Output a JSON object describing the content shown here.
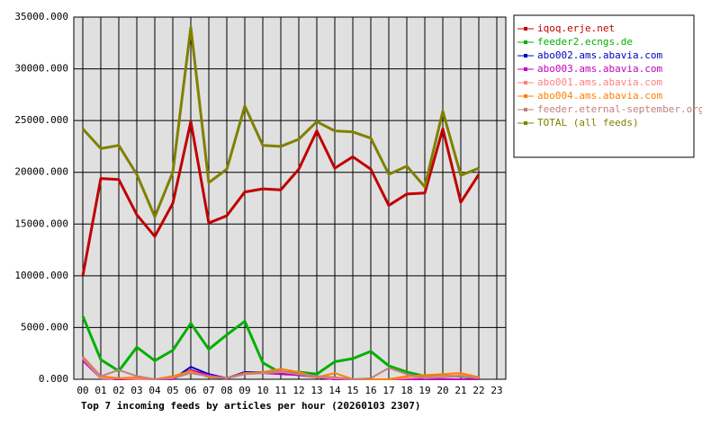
{
  "chart_data": {
    "type": "line",
    "title": "Top 7 incoming feeds by articles per hour (20260103 2307)",
    "categories": [
      "00",
      "01",
      "02",
      "03",
      "04",
      "05",
      "06",
      "07",
      "08",
      "09",
      "10",
      "11",
      "12",
      "13",
      "14",
      "15",
      "16",
      "17",
      "18",
      "19",
      "20",
      "21",
      "22",
      "23"
    ],
    "ylim": [
      0,
      35000
    ],
    "yticks": [
      {
        "value": 0,
        "label": "0.000"
      },
      {
        "value": 5000,
        "label": "5000.000"
      },
      {
        "value": 10000,
        "label": "10000.000"
      },
      {
        "value": 15000,
        "label": "15000.000"
      },
      {
        "value": 20000,
        "label": "20000.000"
      },
      {
        "value": 25000,
        "label": "25000.000"
      },
      {
        "value": 30000,
        "label": "30000.000"
      },
      {
        "value": 35000,
        "label": "35000.000"
      }
    ],
    "grid": true,
    "legend": "right",
    "series": [
      {
        "name": "iqoq.erje.net",
        "color": "#c00000",
        "values": [
          10000,
          19400,
          19300,
          15900,
          13800,
          17000,
          24900,
          15100,
          15800,
          18100,
          18400,
          18300,
          20300,
          24000,
          20400,
          21500,
          20300,
          16800,
          17900,
          18000,
          24200,
          17100,
          19800,
          null
        ]
      },
      {
        "name": "feeder2.ecngs.de",
        "color": "#00b000",
        "values": [
          6100,
          1900,
          800,
          3100,
          1800,
          2800,
          5400,
          2900,
          4300,
          5600,
          1600,
          600,
          700,
          500,
          1700,
          2000,
          2700,
          1300,
          700,
          300,
          300,
          300,
          100,
          null
        ]
      },
      {
        "name": "abo002.ams.abavia.com",
        "color": "#0000c0",
        "values": [
          1900,
          100,
          0,
          0,
          0,
          0,
          1200,
          500,
          100,
          700,
          700,
          600,
          500,
          200,
          0,
          0,
          0,
          0,
          0,
          0,
          0,
          0,
          0,
          null
        ]
      },
      {
        "name": "abo003.ams.abavia.com",
        "color": "#c000c0",
        "values": [
          1800,
          100,
          0,
          0,
          0,
          0,
          900,
          400,
          100,
          600,
          600,
          500,
          400,
          200,
          0,
          0,
          0,
          0,
          0,
          0,
          0,
          0,
          0,
          null
        ]
      },
      {
        "name": "abo001.ams.abavia.com",
        "color": "#ff8080",
        "values": [
          2000,
          100,
          100,
          0,
          0,
          100,
          700,
          300,
          100,
          500,
          600,
          700,
          500,
          200,
          100,
          0,
          0,
          0,
          100,
          200,
          300,
          400,
          100,
          null
        ]
      },
      {
        "name": "abo004.ams.abavia.com",
        "color": "#ff8000",
        "values": [
          2200,
          300,
          100,
          200,
          0,
          300,
          800,
          200,
          100,
          600,
          700,
          1000,
          700,
          200,
          600,
          0,
          0,
          0,
          300,
          400,
          500,
          600,
          200,
          null
        ]
      },
      {
        "name": "feeder.eternal-september.org",
        "color": "#c08080",
        "values": [
          2100,
          300,
          900,
          300,
          0,
          100,
          600,
          300,
          100,
          500,
          600,
          800,
          500,
          300,
          200,
          0,
          100,
          1100,
          500,
          100,
          200,
          300,
          100,
          null
        ]
      },
      {
        "name": "TOTAL (all feeds)",
        "color": "#808000",
        "values": [
          24200,
          22300,
          22600,
          19800,
          15700,
          20000,
          34000,
          19000,
          20300,
          26400,
          22600,
          22500,
          23200,
          24900,
          24000,
          23900,
          23300,
          19800,
          20600,
          18600,
          25900,
          19700,
          20400,
          null
        ]
      }
    ]
  }
}
